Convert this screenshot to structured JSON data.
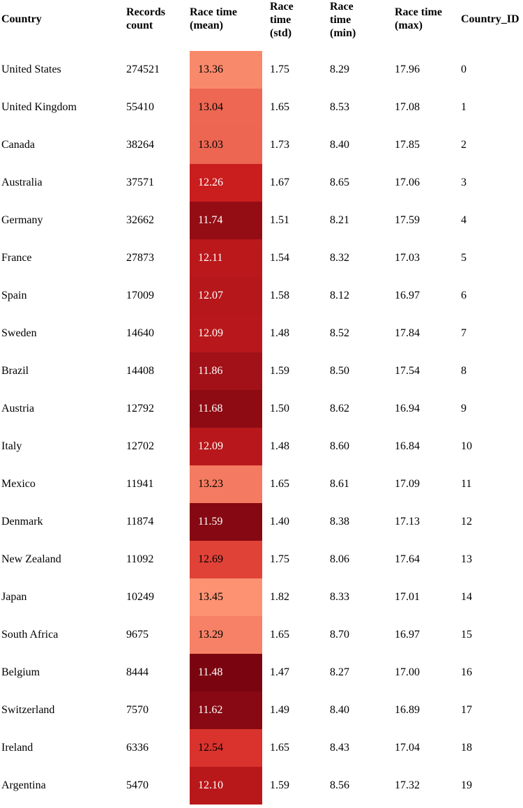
{
  "chart_data": {
    "type": "table",
    "columns": [
      "Country",
      "Records count",
      "Race time (mean)",
      "Race time (std)",
      "Race time (min)",
      "Race time (max)",
      "Country_ID"
    ],
    "rows": [
      [
        "United States",
        "274521",
        "13.36",
        "1.75",
        "8.29",
        "17.96",
        "0"
      ],
      [
        "United Kingdom",
        "55410",
        "13.04",
        "1.65",
        "8.53",
        "17.08",
        "1"
      ],
      [
        "Canada",
        "38264",
        "13.03",
        "1.73",
        "8.40",
        "17.85",
        "2"
      ],
      [
        "Australia",
        "37571",
        "12.26",
        "1.67",
        "8.65",
        "17.06",
        "3"
      ],
      [
        "Germany",
        "32662",
        "11.74",
        "1.51",
        "8.21",
        "17.59",
        "4"
      ],
      [
        "France",
        "27873",
        "12.11",
        "1.54",
        "8.32",
        "17.03",
        "5"
      ],
      [
        "Spain",
        "17009",
        "12.07",
        "1.58",
        "8.12",
        "16.97",
        "6"
      ],
      [
        "Sweden",
        "14640",
        "12.09",
        "1.48",
        "8.52",
        "17.84",
        "7"
      ],
      [
        "Brazil",
        "14408",
        "11.86",
        "1.59",
        "8.50",
        "17.54",
        "8"
      ],
      [
        "Austria",
        "12792",
        "11.68",
        "1.50",
        "8.62",
        "16.94",
        "9"
      ],
      [
        "Italy",
        "12702",
        "12.09",
        "1.48",
        "8.60",
        "16.84",
        "10"
      ],
      [
        "Mexico",
        "11941",
        "13.23",
        "1.65",
        "8.61",
        "17.09",
        "11"
      ],
      [
        "Denmark",
        "11874",
        "11.59",
        "1.40",
        "8.38",
        "17.13",
        "12"
      ],
      [
        "New Zealand",
        "11092",
        "12.69",
        "1.75",
        "8.06",
        "17.64",
        "13"
      ],
      [
        "Japan",
        "10249",
        "13.45",
        "1.82",
        "8.33",
        "17.01",
        "14"
      ],
      [
        "South Africa",
        "9675",
        "13.29",
        "1.65",
        "8.70",
        "16.97",
        "15"
      ],
      [
        "Belgium",
        "8444",
        "11.48",
        "1.47",
        "8.27",
        "17.00",
        "16"
      ],
      [
        "Switzerland",
        "7570",
        "11.62",
        "1.49",
        "8.40",
        "16.89",
        "17"
      ],
      [
        "Ireland",
        "6336",
        "12.54",
        "1.65",
        "8.43",
        "17.04",
        "18"
      ],
      [
        "Argentina",
        "5470",
        "12.10",
        "1.59",
        "8.56",
        "17.32",
        "19"
      ]
    ],
    "heatmap_column": "Race time (mean)",
    "colormap": {
      "low": "#7a0510",
      "mid": "#d42020",
      "high": "#fc9272"
    }
  }
}
